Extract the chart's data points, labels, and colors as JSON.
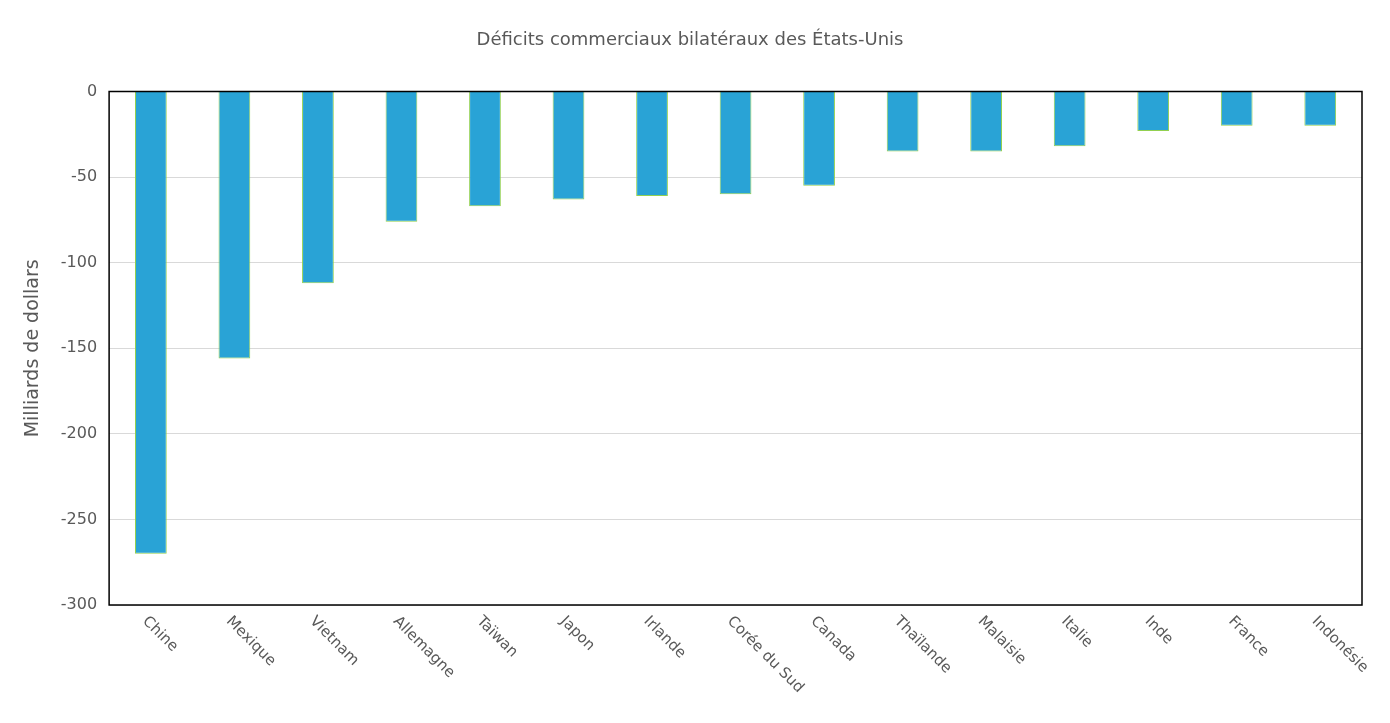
{
  "chart_data": {
    "type": "bar",
    "title": "Déficits commerciaux bilatéraux des États-Unis",
    "ylabel": "Milliards de dollars",
    "categories": [
      "Chine",
      "Mexique",
      "Vietnam",
      "Allemagne",
      "Taïwan",
      "Japon",
      "Irlande",
      "Corée du Sud",
      "Canada",
      "Thaïlande",
      "Malaisie",
      "Italie",
      "Inde",
      "France",
      "Indonésie"
    ],
    "values": [
      -270,
      -156,
      -112,
      -76,
      -67,
      -63,
      -61,
      -60,
      -55,
      -35,
      -35,
      -32,
      -23,
      -20,
      -20
    ],
    "color": "#29a3d6",
    "ylim": [
      -300,
      0
    ],
    "yticks": [
      -300,
      -250,
      -200,
      -150,
      -100,
      -50,
      0
    ],
    "grid": "y",
    "legend": false
  }
}
